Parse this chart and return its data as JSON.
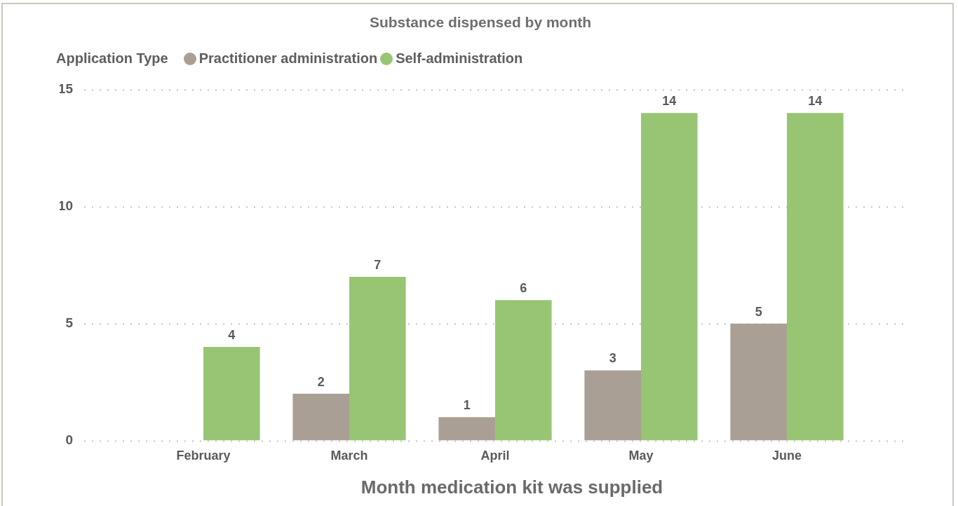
{
  "chart_data": {
    "type": "bar",
    "title": "Substance dispensed by month",
    "xlabel": "Month medication kit was supplied",
    "legend_title": "Application Type",
    "legend": "top left",
    "categories": [
      "February",
      "March",
      "April",
      "May",
      "June"
    ],
    "series": [
      {
        "name": "Practitioner administration",
        "color": "#aa9f94",
        "values": [
          null,
          2,
          1,
          3,
          5
        ]
      },
      {
        "name": "Self-administration",
        "color": "#98c573",
        "values": [
          4,
          7,
          6,
          14,
          14
        ]
      }
    ],
    "ylim": [
      0,
      15
    ],
    "yticks": [
      0,
      5,
      10,
      15
    ],
    "grid": "y",
    "data_labels": true
  }
}
